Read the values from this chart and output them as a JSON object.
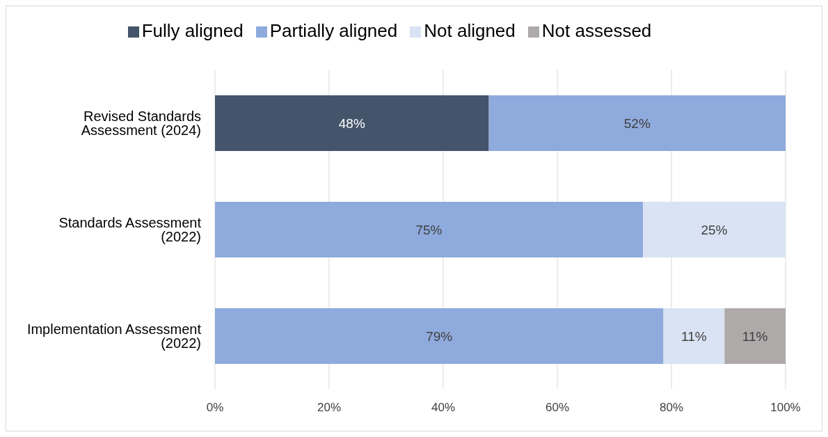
{
  "chart_data": {
    "type": "bar",
    "orientation": "horizontal",
    "stacked": true,
    "categories": [
      "Revised Standards Assessment (2024)",
      "Standards Assessment (2022)",
      "Implementation Assessment (2022)"
    ],
    "series": [
      {
        "name": "Fully aligned",
        "color": "#44546a",
        "values": [
          48,
          null,
          null
        ],
        "value_labels": [
          "48%",
          null,
          null
        ]
      },
      {
        "name": "Partially aligned",
        "color": "#8faadc",
        "values": [
          52,
          75,
          78.6
        ],
        "value_labels": [
          "52%",
          "75%",
          "79%"
        ]
      },
      {
        "name": "Not aligned",
        "color": "#dae3f3",
        "values": [
          null,
          25,
          10.7
        ],
        "value_labels": [
          null,
          "25%",
          "11%"
        ]
      },
      {
        "name": "Not assessed",
        "color": "#aeaaaa",
        "values": [
          null,
          null,
          10.7
        ],
        "value_labels": [
          null,
          null,
          "11%"
        ]
      }
    ],
    "xlim": [
      0,
      100
    ],
    "xticks": [
      {
        "value": 0,
        "label": "0%"
      },
      {
        "value": 20,
        "label": "20%"
      },
      {
        "value": 40,
        "label": "40%"
      },
      {
        "value": 60,
        "label": "60%"
      },
      {
        "value": 80,
        "label": "80%"
      },
      {
        "value": 100,
        "label": "100%"
      }
    ],
    "grid": "x",
    "legend": "top"
  }
}
